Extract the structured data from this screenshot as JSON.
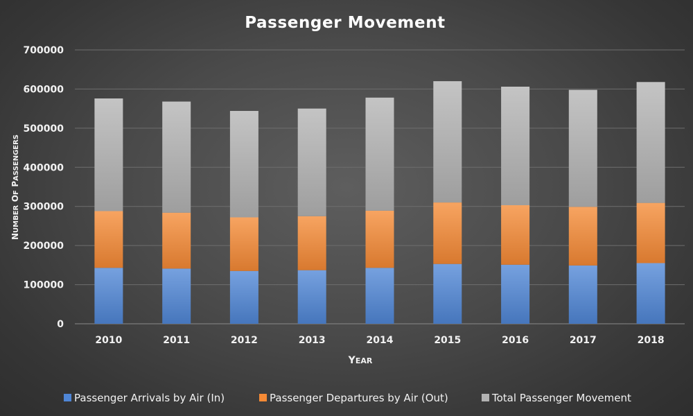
{
  "chart_data": {
    "type": "bar",
    "stacked": true,
    "title": "Passenger Movement",
    "xlabel": "Year",
    "ylabel": "Number of Passengers",
    "ylim": [
      0,
      700000
    ],
    "yticks": [
      0,
      100000,
      200000,
      300000,
      400000,
      500000,
      600000,
      700000
    ],
    "grid": true,
    "legend_position": "bottom",
    "categories": [
      "2010",
      "2011",
      "2012",
      "2013",
      "2014",
      "2015",
      "2016",
      "2017",
      "2018"
    ],
    "series": [
      {
        "name": "Passenger Arrivals by Air (In)",
        "color": "#4f86d6",
        "values": [
          143000,
          141000,
          135000,
          137000,
          143000,
          153000,
          151000,
          149000,
          155000
        ]
      },
      {
        "name": "Passenger Departures by Air (Out)",
        "color": "#f58a35",
        "values": [
          145000,
          143000,
          137000,
          138000,
          146000,
          157000,
          152000,
          150000,
          154000
        ]
      },
      {
        "name": "Total Passenger Movement",
        "color": "#b3b3b3",
        "values": [
          288000,
          284000,
          272000,
          275000,
          289000,
          310000,
          303000,
          299000,
          309000
        ]
      }
    ]
  }
}
